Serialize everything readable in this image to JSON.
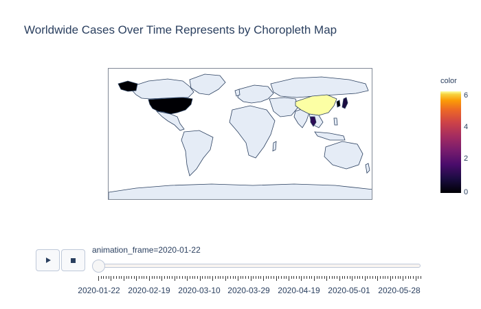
{
  "title": "Worldwide Cases Over Time Represents by Choropleth Map",
  "colors": {
    "land": "#e5ecf6",
    "coastline": "#2a3f5f",
    "ocean": "#ffffff",
    "frame": "#7f8794",
    "text": "#2a3f5f"
  },
  "chart_data": {
    "type": "choropleth",
    "title": "Worldwide Cases Over Time Represents by Choropleth Map",
    "colorbar": {
      "title": "color",
      "colorscale": "plasma",
      "range": [
        0,
        6.3
      ],
      "ticks": [
        "0",
        "2",
        "4",
        "6"
      ]
    },
    "regions": [
      {
        "name": "United States",
        "value": 0,
        "color": "#000004"
      },
      {
        "name": "China",
        "value": 6.3,
        "color": "#fcffa4"
      },
      {
        "name": "Japan",
        "value": 1,
        "color": "#1b0c41"
      },
      {
        "name": "Thailand",
        "value": 1.3,
        "color": "#2c0c55"
      },
      {
        "name": "South Korea",
        "value": 0,
        "color": "#000004"
      }
    ],
    "current_frame": "2020-01-22"
  },
  "animation": {
    "play_icon": "play-icon",
    "stop_icon": "stop-icon",
    "slider_label": "animation_frame=2020-01-22",
    "current_value": "2020-01-22",
    "tick_labels": [
      "2020-01-22",
      "2020-02-19",
      "2020-03-10",
      "2020-03-29",
      "2020-04-19",
      "2020-05-01",
      "2020-05-28"
    ]
  }
}
